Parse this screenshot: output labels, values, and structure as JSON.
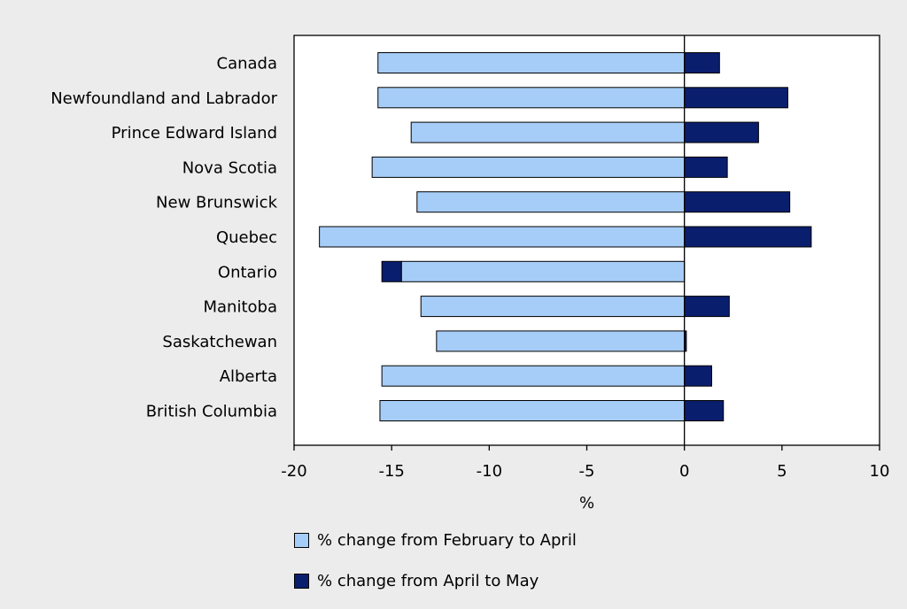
{
  "chart_data": {
    "type": "bar",
    "orientation": "horizontal",
    "categories": [
      "Canada",
      "Newfoundland and Labrador",
      "Prince Edward Island",
      "Nova Scotia",
      "New Brunswick",
      "Quebec",
      "Ontario",
      "Manitoba",
      "Saskatchewan",
      "Alberta",
      "British Columbia"
    ],
    "series": [
      {
        "name": "% change from February to April",
        "color": "#a6cdf7",
        "values": [
          -15.7,
          -15.7,
          -14.0,
          -16.0,
          -13.7,
          -18.7,
          -14.5,
          -13.5,
          -12.7,
          -15.5,
          -15.6
        ]
      },
      {
        "name": "% change from April to May",
        "color": "#0a1e6e",
        "values": [
          1.8,
          5.3,
          3.8,
          2.2,
          5.4,
          6.5,
          -1.0,
          2.3,
          0.1,
          1.4,
          2.0
        ]
      }
    ],
    "xlabel": "%",
    "ylabel": "",
    "xlim": [
      -20,
      10
    ],
    "xticks": [
      -20,
      -15,
      -10,
      -5,
      0,
      5,
      10
    ],
    "grid": false,
    "legend_position": "bottom"
  }
}
